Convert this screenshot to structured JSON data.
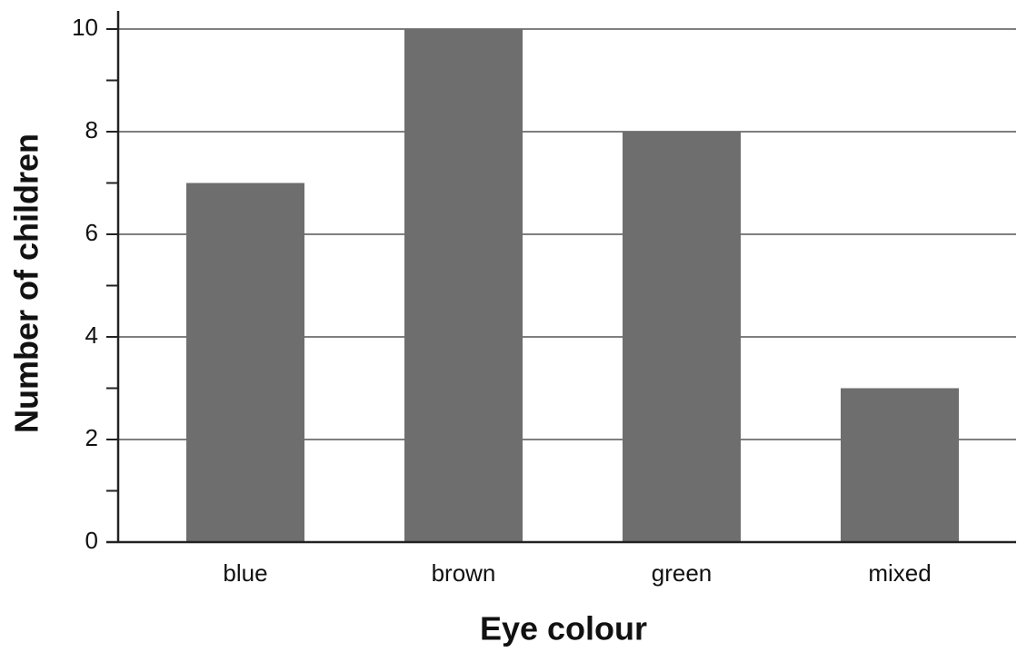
{
  "chart_data": {
    "type": "bar",
    "x_label": "Eye colour",
    "y_label": "Number of children",
    "categories": [
      "blue",
      "brown",
      "green",
      "mixed"
    ],
    "values": [
      7,
      10,
      8,
      3
    ],
    "color": "#6e6e6e",
    "ylim": [
      0,
      10
    ],
    "yticks": [
      0,
      2,
      4,
      6,
      8,
      10
    ],
    "minor_yticks": [
      1,
      3,
      5,
      7,
      9
    ],
    "grid": true
  }
}
